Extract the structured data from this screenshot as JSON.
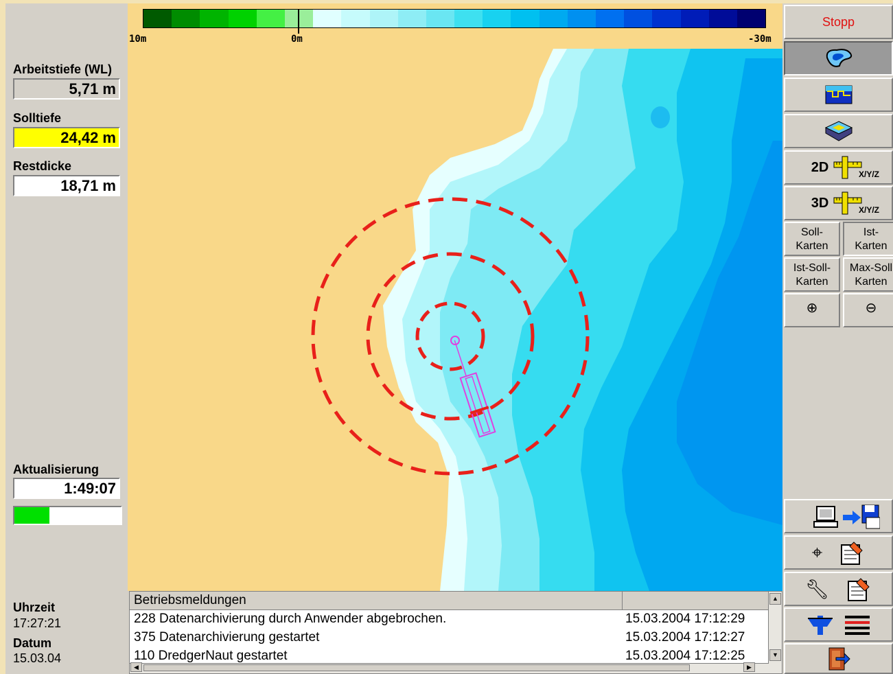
{
  "left_panel": {
    "arbeitstiefe_label": "Arbeitstiefe (WL)",
    "arbeitstiefe_value": "5,71 m",
    "solltiefe_label": "Solltiefe",
    "solltiefe_value": "24,42 m",
    "restdicke_label": "Restdicke",
    "restdicke_value": "18,71 m",
    "aktualisierung_label": "Aktualisierung",
    "aktualisierung_value": "1:49:07",
    "progress_fraction": 0.33,
    "uhrzeit_label": "Uhrzeit",
    "uhrzeit_value": "17:27:21",
    "datum_label": "Datum",
    "datum_value": "15.03.04"
  },
  "colorbar": {
    "labels": [
      "10m",
      "0m",
      "-30m"
    ],
    "colors": [
      "#005a00",
      "#008c00",
      "#00b400",
      "#00d200",
      "#44f044",
      "#9aee9a",
      "#e0ffff",
      "#c6fbfc",
      "#aef4f8",
      "#8eedf5",
      "#6ae6f2",
      "#3ee0f0",
      "#18d2f0",
      "#00c0f0",
      "#00aaf0",
      "#0090f0",
      "#0070f0",
      "#0050e0",
      "#0032d0",
      "#001cb8",
      "#000c98",
      "#000070"
    ]
  },
  "log": {
    "header": "Betriebsmeldungen",
    "rows": [
      {
        "message": "228 Datenarchivierung durch Anwender abgebrochen.",
        "time": "15.03.2004 17:12:29"
      },
      {
        "message": "375 Datenarchivierung gestartet",
        "time": "15.03.2004 17:12:27"
      },
      {
        "message": "110 DredgerNaut gestartet",
        "time": "15.03.2004 17:12:25"
      }
    ]
  },
  "right_panel": {
    "stopp": "Stopp",
    "btn_2d": "2D",
    "btn_3d": "3D",
    "xyz_label": "X/Y/Z",
    "soll_karten": "Soll-\nKarten",
    "ist_karten": "Ist-\nKarten",
    "ist_soll_karten": "Ist-Soll-\nKarten",
    "max_soll_karten": "Max-Soll\nKarten",
    "zoom_in": "⊕",
    "zoom_out": "⊖",
    "icons": [
      "pool-map-icon",
      "depth-profile-icon",
      "3d-layer-icon",
      "ruler-icon",
      "computer-icon",
      "save-arrow-icon",
      "crosshair-icon",
      "notepad-icon",
      "wrench-icon",
      "tide-icon",
      "legend-icon",
      "exit-icon"
    ]
  },
  "colors": {
    "sand": "#f9d889",
    "solltiefe_highlight": "#ffff00",
    "stopp_text": "#e01010",
    "circle": "#e8201a",
    "dredger": "#e040e0",
    "progress": "#00e000"
  }
}
